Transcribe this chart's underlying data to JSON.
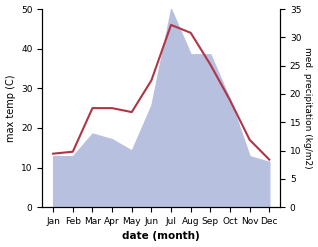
{
  "months": [
    "Jan",
    "Feb",
    "Mar",
    "Apr",
    "May",
    "Jun",
    "Jul",
    "Aug",
    "Sep",
    "Oct",
    "Nov",
    "Dec"
  ],
  "max_temp": [
    13.5,
    14.0,
    25.0,
    25.0,
    24.0,
    32.0,
    46.0,
    44.0,
    36.0,
    27.0,
    17.0,
    12.0
  ],
  "precipitation": [
    9.0,
    9.0,
    13.0,
    12.0,
    10.0,
    18.0,
    35.0,
    27.0,
    27.0,
    19.0,
    9.0,
    8.0
  ],
  "temp_color": "#b03545",
  "precip_fill_color": "#b8c0e0",
  "ylabel_left": "max temp (C)",
  "ylabel_right": "med. precipitation (kg/m2)",
  "xlabel": "date (month)",
  "ylim_left": [
    0,
    50
  ],
  "ylim_right": [
    0,
    35
  ],
  "yticks_left": [
    0,
    10,
    20,
    30,
    40,
    50
  ],
  "yticks_right": [
    0,
    5,
    10,
    15,
    20,
    25,
    30,
    35
  ],
  "background_color": "#ffffff"
}
